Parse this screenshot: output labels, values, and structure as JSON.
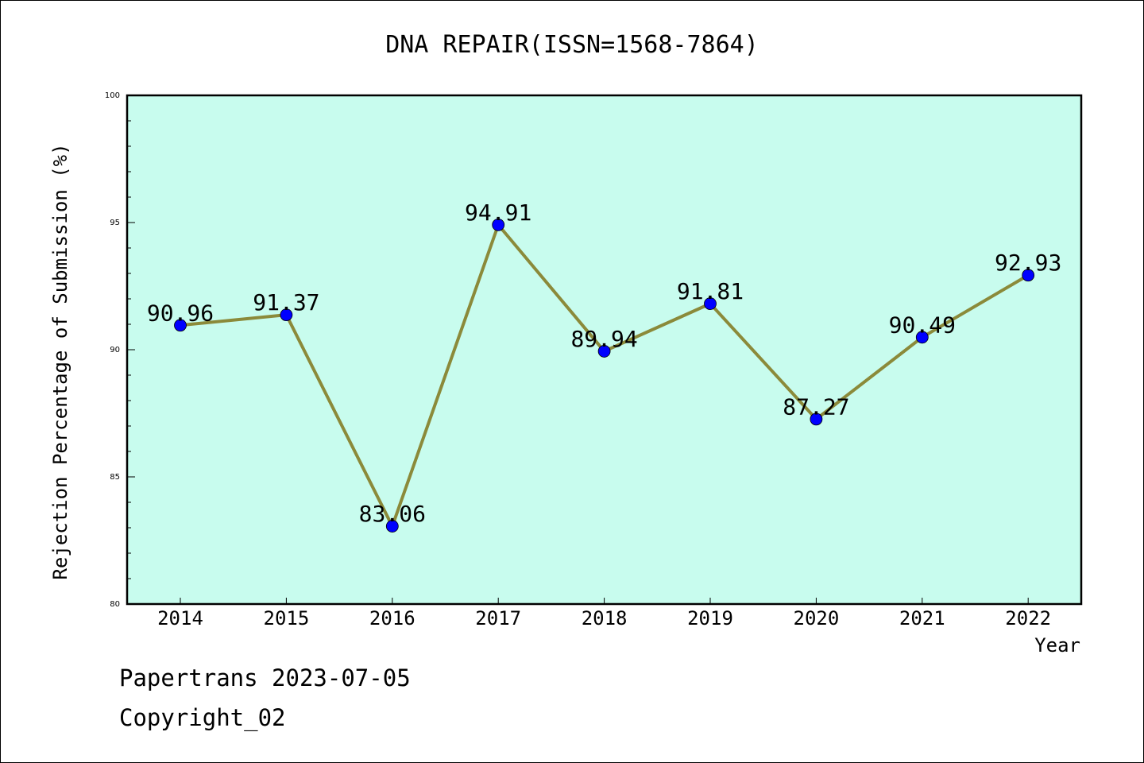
{
  "chart_data": {
    "type": "line",
    "title": "DNA REPAIR(ISSN=1568-7864)",
    "xlabel": "Year",
    "ylabel": "Rejection Percentage of Submission (%)",
    "categories": [
      "2014",
      "2015",
      "2016",
      "2017",
      "2018",
      "2019",
      "2020",
      "2021",
      "2022"
    ],
    "values": [
      90.96,
      91.37,
      83.06,
      94.91,
      89.94,
      91.81,
      87.27,
      90.49,
      92.93
    ],
    "data_labels": [
      "90.96",
      "91.37",
      "83.06",
      "94.91",
      "89.94",
      "91.81",
      "87.27",
      "90.49",
      "92.93"
    ],
    "ylim": [
      80,
      100
    ],
    "yticks": [
      "80",
      "85",
      "90",
      "95",
      "100"
    ],
    "grid": false,
    "colors": {
      "plot_background": "#c8fcee",
      "line": "#8b8a3a",
      "marker": "#0000ff"
    }
  },
  "footer": {
    "line1": "Papertrans 2023-07-05",
    "line2": "Copyright_02"
  }
}
